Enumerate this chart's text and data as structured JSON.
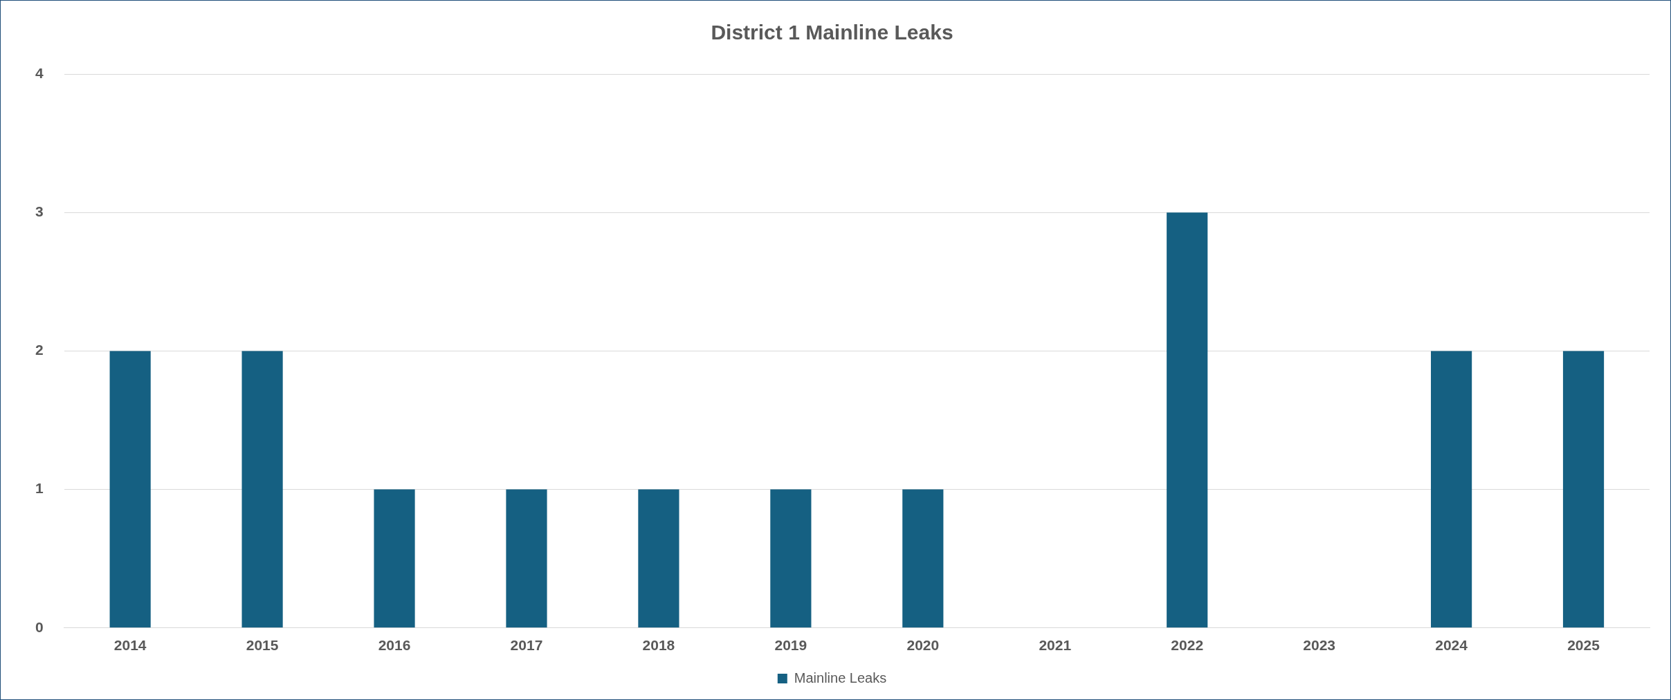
{
  "chart_data": {
    "type": "bar",
    "title": "District 1 Mainline Leaks",
    "categories": [
      "2014",
      "2015",
      "2016",
      "2017",
      "2018",
      "2019",
      "2020",
      "2021",
      "2022",
      "2023",
      "2024",
      "2025"
    ],
    "series": [
      {
        "name": "Mainline Leaks",
        "color": "#156082",
        "values": [
          2,
          2,
          1,
          1,
          1,
          1,
          1,
          0,
          3,
          0,
          2,
          2
        ]
      }
    ],
    "ylim": [
      0,
      4
    ],
    "yticks": [
      0,
      1,
      2,
      3,
      4
    ],
    "grid": "y",
    "legend": "bottom"
  }
}
